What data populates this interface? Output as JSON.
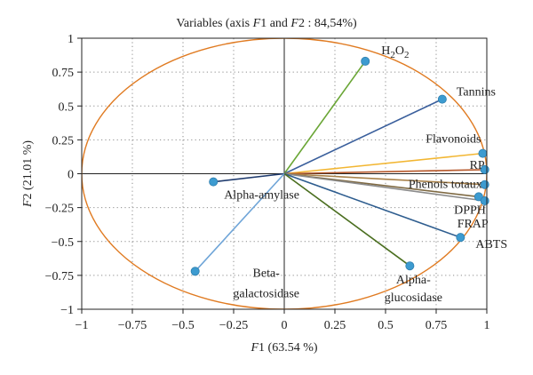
{
  "chart_data": {
    "type": "scatter",
    "subtype": "pca-correlation-circle",
    "title": "Variables (axis F1 and F2 : 84,54%)",
    "title_parts": [
      {
        "text": "Variables (axis ",
        "italic": false
      },
      {
        "text": "F",
        "italic": true
      },
      {
        "text": "1 and ",
        "italic": false
      },
      {
        "text": "F",
        "italic": true
      },
      {
        "text": "2 : 84,54%)",
        "italic": false
      }
    ],
    "xlabel": "F1 (63.54 %)",
    "xlabel_parts": [
      {
        "text": "F",
        "italic": true
      },
      {
        "text": "1 (63.54 %)",
        "italic": false
      }
    ],
    "ylabel": "F2 (21.01 %)",
    "ylabel_parts": [
      {
        "text": "F",
        "italic": true
      },
      {
        "text": "2 (21.01 %)",
        "italic": false
      }
    ],
    "xlim": [
      -1,
      1
    ],
    "ylim": [
      -1,
      1
    ],
    "xticks": [
      -1,
      -0.75,
      -0.5,
      -0.25,
      0,
      0.25,
      0.5,
      0.75,
      1
    ],
    "xtick_labels": [
      "−1",
      "−0.75",
      "−0.5",
      "−0.25",
      "0",
      "0.25",
      "0.5",
      "0.75",
      "1"
    ],
    "yticks": [
      -1,
      -0.75,
      -0.5,
      -0.25,
      0,
      0.25,
      0.5,
      0.75,
      1
    ],
    "ytick_labels": [
      "−1",
      "−0.75",
      "−0.5",
      "−0.25",
      "0",
      "0.25",
      "0.5",
      "0.75",
      "1"
    ],
    "grid": "dotted",
    "circle_radius": 1,
    "circle_color": "#e07b22",
    "point_color": "#3d9bd0",
    "points": [
      {
        "name": "H2O2",
        "label": "H2O2",
        "x": 0.4,
        "y": 0.83,
        "color": "#6aa636"
      },
      {
        "name": "Tannins",
        "label": "Tannins",
        "x": 0.78,
        "y": 0.55,
        "color": "#3a5f9c"
      },
      {
        "name": "Flavonoids",
        "label": "Flavonoids",
        "x": 0.98,
        "y": 0.15,
        "color": "#f2b632"
      },
      {
        "name": "RP",
        "label": "RP",
        "x": 0.99,
        "y": 0.03,
        "color": "#b5572a"
      },
      {
        "name": "Phenols totaux",
        "label": "Phenols totaux",
        "x": 0.99,
        "y": -0.08,
        "color": "#a8814a"
      },
      {
        "name": "DPPH",
        "label": "DPPH",
        "x": 0.96,
        "y": -0.17,
        "color": "#7f6a43"
      },
      {
        "name": "FRAP",
        "label": "FRAP",
        "x": 0.99,
        "y": -0.2,
        "color": "#8b8b8b"
      },
      {
        "name": "ABTS",
        "label": "ABTS",
        "x": 0.87,
        "y": -0.47,
        "color": "#2e5d8f"
      },
      {
        "name": "Alpha-glucosidase",
        "label": [
          "Alpha-",
          "glucosidase"
        ],
        "x": 0.62,
        "y": -0.68,
        "color": "#4a6e1f"
      },
      {
        "name": "Alpha-amylase",
        "label": "Alpha-amylase",
        "x": -0.35,
        "y": -0.06,
        "color": "#1f3b6e"
      },
      {
        "name": "Beta-galactosidase",
        "label": [
          "Beta-",
          "galactosidase"
        ],
        "x": -0.44,
        "y": -0.72,
        "color": "#6fa5d8"
      }
    ]
  }
}
